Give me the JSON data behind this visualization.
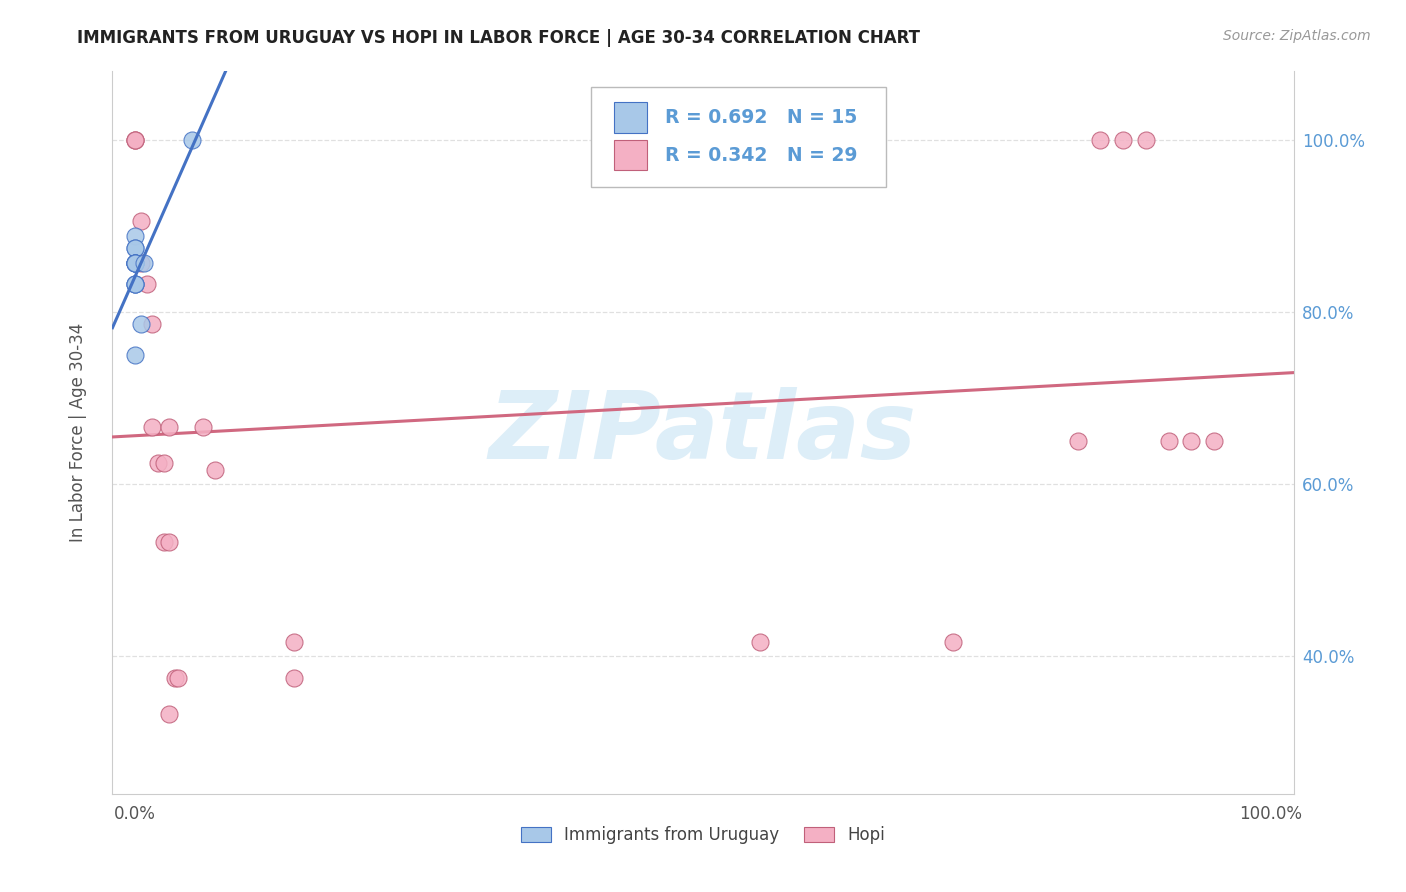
{
  "title": "IMMIGRANTS FROM URUGUAY VS HOPI IN LABOR FORCE | AGE 30-34 CORRELATION CHART",
  "source": "Source: ZipAtlas.com",
  "ylabel": "In Labor Force | Age 30-34",
  "uruguay_color": "#a8c8e8",
  "hopi_color": "#f4b0c4",
  "uruguay_edge_color": "#4472c4",
  "hopi_edge_color": "#c0607a",
  "uruguay_line_color": "#4472c4",
  "hopi_line_color": "#d06880",
  "watermark_text": "ZIPatlas",
  "watermark_color": "#ddeef8",
  "bg_color": "#ffffff",
  "grid_color": "#e0e0e0",
  "tick_color_right": "#5b9bd5",
  "tick_color_x": "#555555",
  "axis_color": "#cccccc",
  "title_color": "#222222",
  "ylabel_color": "#555555",
  "legend_box_edge": "#bbbbbb",
  "legend_text_color": "#5b9bd5",
  "uruguay_x": [
    0.0,
    0.0,
    0.0,
    0.0,
    0.0,
    0.0,
    0.0,
    0.0,
    0.0,
    0.0,
    0.0,
    0.0,
    0.005,
    0.008,
    0.05
  ],
  "uruguay_y": [
    0.889,
    0.875,
    0.875,
    0.857,
    0.857,
    0.857,
    0.857,
    0.857,
    0.833,
    0.833,
    0.833,
    0.75,
    0.786,
    0.857,
    1.0
  ],
  "hopi_x": [
    0.0,
    0.0,
    0.0,
    0.005,
    0.005,
    0.01,
    0.015,
    0.015,
    0.02,
    0.025,
    0.025,
    0.03,
    0.03,
    0.03,
    0.035,
    0.038,
    0.06,
    0.07,
    0.14,
    0.14,
    0.55,
    0.72,
    0.83,
    0.85,
    0.87,
    0.89,
    0.91,
    0.93,
    0.95
  ],
  "hopi_y": [
    1.0,
    1.0,
    1.0,
    0.906,
    0.857,
    0.833,
    0.786,
    0.667,
    0.625,
    0.625,
    0.533,
    0.667,
    0.533,
    0.333,
    0.375,
    0.375,
    0.667,
    0.617,
    0.417,
    0.375,
    0.417,
    0.417,
    0.65,
    1.0,
    1.0,
    1.0,
    0.65,
    0.65,
    0.65
  ],
  "xmin": -0.02,
  "xmax": 1.02,
  "ymin": 0.24,
  "ymax": 1.08,
  "yticks": [
    0.4,
    0.6,
    0.8,
    1.0
  ],
  "ytick_labels": [
    "40.0%",
    "60.0%",
    "80.0%",
    "100.0%"
  ],
  "xticks": [
    0.0,
    0.125,
    0.25,
    0.375,
    0.5,
    0.625,
    0.75,
    0.875,
    1.0
  ],
  "xtick_labels": [
    "0.0%",
    "",
    "",
    "",
    "",
    "",
    "",
    "",
    "100.0%"
  ],
  "legend_bottom_labels": [
    "Immigrants from Uruguay",
    "Hopi"
  ],
  "R_uruguay": "R = 0.692",
  "N_uruguay": "N = 15",
  "R_hopi": "R = 0.342",
  "N_hopi": "N = 29"
}
